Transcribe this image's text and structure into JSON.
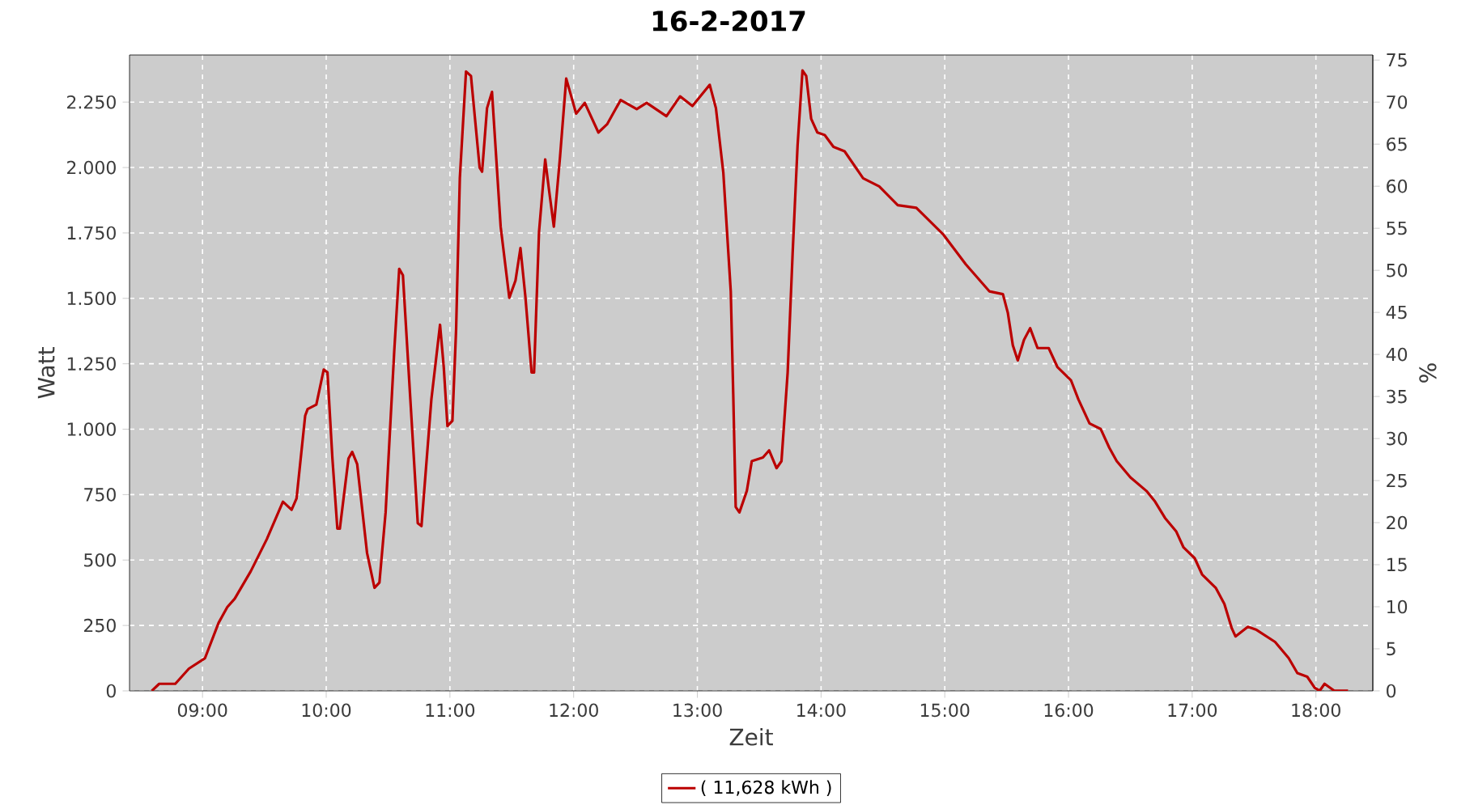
{
  "chart_data": {
    "type": "line",
    "title": "16-2-2017",
    "xlabel": "Zeit",
    "ylabel": "Watt",
    "y2label": "%",
    "xlim": [
      8.41,
      18.46
    ],
    "xticks": [
      {
        "value": 9,
        "label": "09:00"
      },
      {
        "value": 10,
        "label": "10:00"
      },
      {
        "value": 11,
        "label": "11:00"
      },
      {
        "value": 12,
        "label": "12:00"
      },
      {
        "value": 13,
        "label": "13:00"
      },
      {
        "value": 14,
        "label": "14:00"
      },
      {
        "value": 15,
        "label": "15:00"
      },
      {
        "value": 16,
        "label": "16:00"
      },
      {
        "value": 17,
        "label": "17:00"
      },
      {
        "value": 18,
        "label": "18:00"
      }
    ],
    "ylim": [
      0,
      2430
    ],
    "yticks": [
      0,
      250,
      500,
      750,
      {
        "value": 1000,
        "label": "1.000"
      },
      {
        "value": 1250,
        "label": "1.250"
      },
      {
        "value": 1500,
        "label": "1.500"
      },
      {
        "value": 1750,
        "label": "1.750"
      },
      {
        "value": 2000,
        "label": "2.000"
      },
      {
        "value": 2250,
        "label": "2.250"
      }
    ],
    "y2lim": [
      0,
      75.6
    ],
    "y2ticks": [
      0,
      5,
      10,
      15,
      20,
      25,
      30,
      35,
      40,
      45,
      50,
      55,
      60,
      65,
      70,
      75
    ],
    "grid": true,
    "legend": "bottom",
    "marker": "none",
    "line_style": "solid",
    "series": [
      {
        "name": "( 11,628 kWh )",
        "color": "#bb0000",
        "x": [
          8.59,
          8.65,
          8.78,
          8.89,
          9.02,
          9.13,
          9.2,
          9.26,
          9.39,
          9.52,
          9.65,
          9.72,
          9.76,
          9.83,
          9.85,
          9.92,
          9.98,
          10.01,
          10.05,
          10.09,
          10.11,
          10.18,
          10.21,
          10.25,
          10.33,
          10.39,
          10.43,
          10.48,
          10.55,
          10.59,
          10.62,
          10.68,
          10.74,
          10.77,
          10.85,
          10.92,
          10.95,
          10.98,
          11.02,
          11.05,
          11.08,
          11.13,
          11.17,
          11.24,
          11.26,
          11.3,
          11.34,
          11.41,
          11.48,
          11.53,
          11.57,
          11.61,
          11.66,
          11.68,
          11.72,
          11.77,
          11.8,
          11.84,
          11.89,
          11.94,
          12.02,
          12.09,
          12.2,
          12.27,
          12.38,
          12.51,
          12.59,
          12.75,
          12.86,
          12.96,
          13.1,
          13.15,
          13.21,
          13.27,
          13.29,
          13.31,
          13.34,
          13.4,
          13.44,
          13.53,
          13.58,
          13.64,
          13.68,
          13.73,
          13.77,
          13.81,
          13.85,
          13.88,
          13.92,
          13.97,
          14.03,
          14.1,
          14.19,
          14.34,
          14.47,
          14.62,
          14.77,
          14.99,
          15.17,
          15.36,
          15.47,
          15.51,
          15.55,
          15.59,
          15.64,
          15.69,
          15.75,
          15.84,
          15.91,
          16.02,
          16.08,
          16.17,
          16.26,
          16.33,
          16.39,
          16.5,
          16.63,
          16.7,
          16.78,
          16.87,
          16.93,
          17.02,
          17.08,
          17.19,
          17.26,
          17.32,
          17.35,
          17.45,
          17.52,
          17.67,
          17.78,
          17.85,
          17.93,
          17.99,
          18.03,
          18.07,
          18.15,
          18.26
        ],
        "values": [
          0,
          27,
          27,
          85,
          125,
          260,
          320,
          352,
          457,
          580,
          723,
          692,
          735,
          1052,
          1077,
          1094,
          1228,
          1217,
          888,
          620,
          620,
          888,
          913,
          867,
          527,
          394,
          414,
          682,
          1300,
          1613,
          1588,
          1114,
          641,
          630,
          1114,
          1399,
          1238,
          1012,
          1032,
          1383,
          1959,
          2367,
          2350,
          2000,
          1984,
          2227,
          2289,
          1774,
          1502,
          1568,
          1692,
          1506,
          1217,
          1217,
          1753,
          2031,
          1918,
          1774,
          2041,
          2340,
          2206,
          2247,
          2134,
          2165,
          2258,
          2223,
          2247,
          2196,
          2272,
          2235,
          2316,
          2227,
          1980,
          1527,
          1135,
          703,
          682,
          764,
          878,
          892,
          919,
          851,
          878,
          1217,
          1671,
          2083,
          2371,
          2350,
          2186,
          2134,
          2124,
          2079,
          2062,
          1959,
          1928,
          1856,
          1846,
          1743,
          1630,
          1527,
          1516,
          1444,
          1321,
          1263,
          1341,
          1386,
          1310,
          1310,
          1238,
          1187,
          1114,
          1022,
          1001,
          929,
          878,
          816,
          764,
          723,
          661,
          610,
          548,
          507,
          445,
          394,
          332,
          239,
          208,
          245,
          233,
          187,
          125,
          68,
          54,
          12,
          0,
          27,
          0,
          0
        ]
      }
    ]
  }
}
